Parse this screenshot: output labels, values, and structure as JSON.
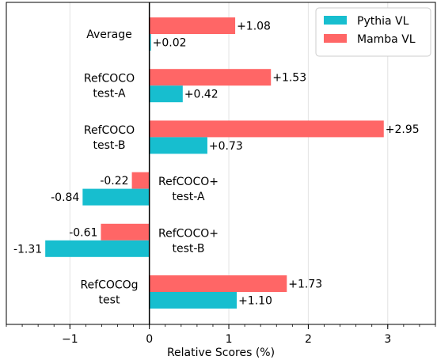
{
  "chart_data": {
    "type": "bar",
    "orientation": "horizontal",
    "xlabel": "Relative Scores (%)",
    "xlim": [
      -1.8,
      3.6
    ],
    "x_ticks": [
      -1,
      0,
      1,
      2,
      3
    ],
    "x_tick_labels": [
      "−1",
      "0",
      "1",
      "2",
      "3"
    ],
    "grid": "vertical",
    "legend_position": "top-right",
    "categories": [
      [
        "Average"
      ],
      [
        "RefCOCO",
        "test-A"
      ],
      [
        "RefCOCO",
        "test-B"
      ],
      [
        "RefCOCO+",
        "test-A"
      ],
      [
        "RefCOCO+",
        "test-B"
      ],
      [
        "RefCOCOg",
        "test"
      ]
    ],
    "series": [
      {
        "name": "Pythia VL",
        "color": "#17becf",
        "values": [
          0.02,
          0.42,
          0.73,
          -0.84,
          -1.31,
          1.1
        ],
        "labels": [
          "+0.02",
          "+0.42",
          "+0.73",
          "-0.84",
          "-1.31",
          "+1.10"
        ]
      },
      {
        "name": "Mamba VL",
        "color": "#ff6666",
        "values": [
          1.08,
          1.53,
          2.95,
          -0.22,
          -0.61,
          1.73
        ],
        "labels": [
          "+1.08",
          "+1.53",
          "+2.95",
          "-0.22",
          "-0.61",
          "+1.73"
        ]
      }
    ]
  }
}
